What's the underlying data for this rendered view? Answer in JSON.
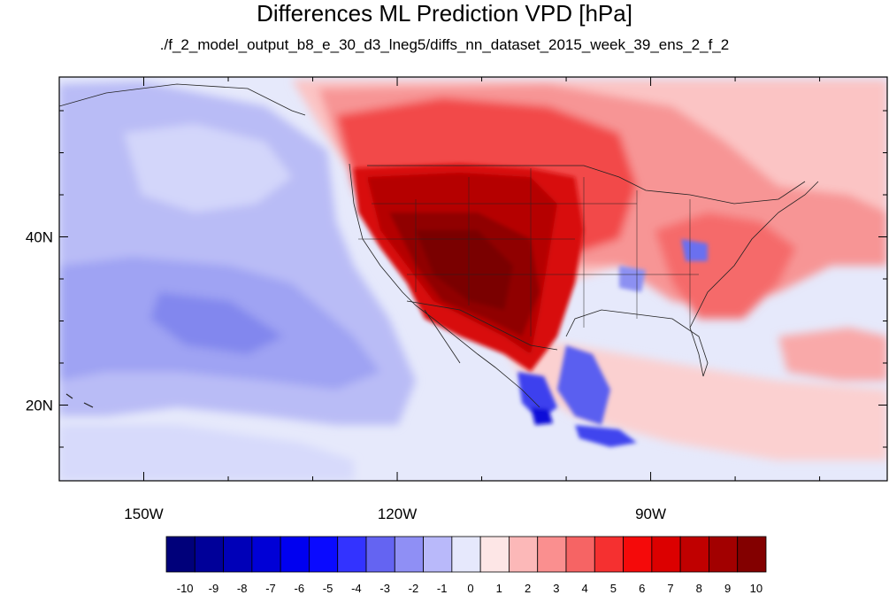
{
  "title": "Differences ML Prediction VPD [hPa]",
  "subtitle": "./f_2_model_output_b8_e_30_d3_lneg5/diffs_nn_dataset_2015_week_39_ens_2_f_2",
  "map": {
    "lon_range": [
      -160,
      -62
    ],
    "lat_range": [
      11,
      59
    ],
    "lon_ticks": [
      {
        "value": -150,
        "label": "150W"
      },
      {
        "value": -120,
        "label": "120W"
      },
      {
        "value": -90,
        "label": "90W"
      }
    ],
    "lat_ticks": [
      {
        "value": 40,
        "label": "40N"
      },
      {
        "value": 20,
        "label": "20N"
      }
    ],
    "background_color": "#e6e9fb"
  },
  "colorbar": {
    "labels": [
      "-10",
      "-9",
      "-8",
      "-7",
      "-6",
      "-5",
      "-4",
      "-3",
      "-2",
      "-1",
      "0",
      "1",
      "2",
      "3",
      "4",
      "5",
      "6",
      "7",
      "8",
      "9",
      "10"
    ],
    "colors": [
      "#00007a",
      "#000099",
      "#0000b8",
      "#0000d6",
      "#0000f0",
      "#0a0aff",
      "#3333ff",
      "#6464f2",
      "#8f8ff5",
      "#b9b9fa",
      "#e6e8fc",
      "#fde6e6",
      "#fcb8b8",
      "#fa8f8f",
      "#f66464",
      "#f53030",
      "#f50a0a",
      "#dc0000",
      "#c00000",
      "#a20000",
      "#830000"
    ]
  }
}
